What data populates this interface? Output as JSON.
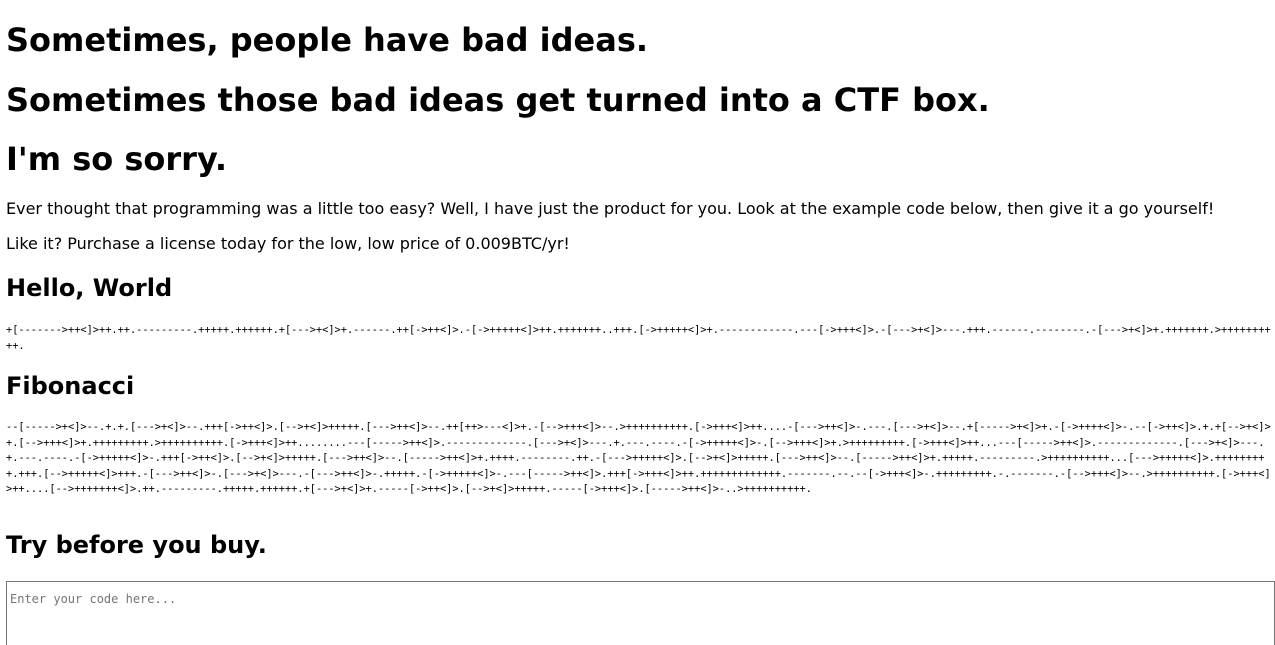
{
  "headings": {
    "line1": "Sometimes, people have bad ideas.",
    "line2": "Sometimes those bad ideas get turned into a CTF box.",
    "line3": "I'm so sorry."
  },
  "intro": "Ever thought that programming was a little too easy? Well, I have just the product for you. Look at the example code below, then give it a go yourself!",
  "license": "Like it? Purchase a license today for the low, low price of 0.009BTC/yr!",
  "hello_world": {
    "title": "Hello, World",
    "code": "+[------->++<]>++.++.---------.+++++.++++++.+[--->+<]>+.------.++[->++<]>.-[->+++++<]>++.+++++++..+++.[->+++++<]>+.------------.---[->+++<]>.-[--->+<]>---.+++.------.--------.-[--->+<]>+.+++++++.>++++++++++."
  },
  "fibonacci": {
    "title": "Fibonacci",
    "code": "--[----->+<]>--.+.+.[--->+<]>--.+++[->++<]>.[-->+<]>+++++.[--->++<]>--.++[++>---<]>+.-[-->+++<]>--.>++++++++++.[->+++<]>++....-[--->++<]>-.---.[--->+<]>--.+[----->+<]>+.-[->++++<]>-.--[->++<]>.+.+[-->+<]>+.[-->+++<]>+.+++++++++.>++++++++++.[->+++<]>++........---[----->++<]>.-------------.[--->+<]>---.+.---.----.-[->+++++<]>-.[-->+++<]>+.>+++++++++.[->+++<]>++...---[----->++<]>.-------------.[--->+<]>---.+.---.----.-[->+++++<]>-.+++[->++<]>.[-->+<]>+++++.[--->++<]>--.[----->++<]>+.++++.--------.++.-[--->+++++<]>.[-->+<]>+++++.[--->++<]>--.[----->++<]>+.+++++.---------.>++++++++++...[--->+++++<]>.+++++++++.+++.[-->+++++<]>+++.-[--->++<]>-.[--->+<]>---.-[--->++<]>-.+++++.-[->+++++<]>-.---[----->++<]>.+++[->+++<]>++.+++++++++++++.-------.--.--[->+++<]>-.+++++++++.-.-------.-[-->+++<]>--.>++++++++++.[->+++<]>++....[-->+++++++<]>.++.---------.+++++.++++++.+[--->+<]>+.-----[->++<]>.[-->+<]>+++++.-----[->+++<]>.[----->++<]>-..>++++++++++."
  },
  "try": {
    "title": "Try before you buy.",
    "placeholder": "Enter your code here...",
    "value": ""
  }
}
